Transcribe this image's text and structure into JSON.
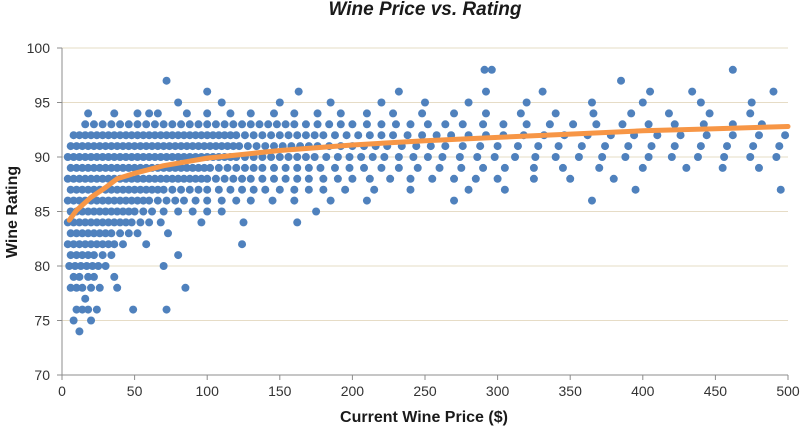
{
  "chart_data": {
    "type": "scatter",
    "title": "Wine Price vs. Rating",
    "xlabel": "Current Wine Price ($)",
    "ylabel": "Wine Rating",
    "xlim": [
      0,
      500
    ],
    "ylim": [
      70,
      100
    ],
    "x_ticks": [
      0,
      50,
      100,
      150,
      200,
      250,
      300,
      350,
      400,
      450,
      500
    ],
    "y_ticks": [
      70,
      75,
      80,
      85,
      90,
      95,
      100
    ],
    "grid": "horizontal",
    "legend": "none",
    "colors": {
      "points": "#4f81bd",
      "trendline": "#f79646",
      "grid": "#e6dcc6",
      "axis": "#8c8c8c"
    },
    "series": [
      {
        "kind": "points",
        "bands": [
          {
            "y": 74,
            "x": [
              12
            ]
          },
          {
            "y": 75,
            "x": [
              8,
              20
            ]
          },
          {
            "y": 76,
            "x": [
              10,
              14,
              18,
              24,
              49,
              72
            ]
          },
          {
            "y": 77,
            "x": [
              16
            ]
          },
          {
            "y": 78,
            "x": [
              6,
              10,
              14,
              20,
              26,
              38,
              85
            ]
          },
          {
            "y": 79,
            "x": [
              8,
              12,
              18,
              22,
              36
            ]
          },
          {
            "y": 80,
            "x": [
              5,
              9,
              13,
              17,
              21,
              25,
              30,
              70
            ]
          },
          {
            "y": 81,
            "x": [
              6,
              10,
              14,
              18,
              22,
              28,
              34,
              80
            ]
          },
          {
            "y": 82,
            "x": [
              4,
              8,
              12,
              16,
              20,
              24,
              28,
              32,
              36,
              42,
              58,
              124
            ]
          },
          {
            "y": 83,
            "x": [
              6,
              10,
              14,
              18,
              22,
              26,
              30,
              34,
              40,
              46,
              52,
              73
            ]
          },
          {
            "y": 84,
            "x": [
              4,
              8,
              12,
              16,
              20,
              24,
              28,
              32,
              36,
              40,
              44,
              48,
              54,
              60,
              68,
              96,
              125,
              162
            ]
          },
          {
            "y": 85,
            "x": [
              6,
              10,
              14,
              18,
              22,
              26,
              30,
              34,
              38,
              42,
              46,
              50,
              56,
              62,
              70,
              80,
              90,
              100,
              110,
              175
            ]
          },
          {
            "y": 86,
            "x": [
              4,
              8,
              12,
              16,
              20,
              24,
              28,
              32,
              36,
              40,
              44,
              48,
              52,
              56,
              60,
              66,
              72,
              78,
              84,
              92,
              100,
              110,
              120,
              130,
              145,
              160,
              185,
              210,
              270,
              365
            ]
          },
          {
            "y": 87,
            "x": [
              6,
              10,
              14,
              18,
              22,
              26,
              30,
              34,
              38,
              42,
              46,
              50,
              54,
              58,
              62,
              66,
              70,
              76,
              82,
              88,
              94,
              100,
              108,
              116,
              124,
              132,
              140,
              150,
              160,
              170,
              180,
              195,
              215,
              240,
              280,
              305,
              395,
              495
            ]
          },
          {
            "y": 88,
            "x": [
              4,
              8,
              12,
              16,
              20,
              24,
              28,
              32,
              36,
              40,
              44,
              48,
              52,
              56,
              60,
              64,
              68,
              72,
              76,
              80,
              84,
              88,
              92,
              96,
              100,
              106,
              112,
              118,
              124,
              130,
              138,
              146,
              154,
              162,
              170,
              180,
              190,
              200,
              212,
              226,
              240,
              255,
              270,
              285,
              300,
              325,
              350,
              380
            ]
          },
          {
            "y": 89,
            "x": [
              6,
              10,
              14,
              18,
              22,
              26,
              30,
              34,
              38,
              42,
              46,
              50,
              54,
              58,
              62,
              66,
              70,
              74,
              78,
              82,
              86,
              90,
              94,
              98,
              102,
              108,
              114,
              120,
              126,
              132,
              138,
              146,
              154,
              162,
              170,
              178,
              188,
              198,
              208,
              220,
              232,
              245,
              260,
              275,
              290,
              305,
              325,
              345,
              370,
              400,
              430,
              455,
              480
            ]
          },
          {
            "y": 90,
            "x": [
              4,
              8,
              12,
              16,
              20,
              24,
              28,
              32,
              36,
              40,
              44,
              48,
              52,
              56,
              60,
              64,
              68,
              72,
              76,
              80,
              84,
              88,
              92,
              96,
              100,
              104,
              108,
              112,
              116,
              120,
              126,
              132,
              138,
              144,
              150,
              156,
              162,
              168,
              174,
              182,
              190,
              198,
              206,
              214,
              222,
              232,
              242,
              252,
              262,
              274,
              286,
              298,
              312,
              326,
              340,
              356,
              372,
              388,
              404,
              420,
              438,
              456,
              474,
              492
            ]
          },
          {
            "y": 91,
            "x": [
              6,
              10,
              14,
              18,
              22,
              26,
              30,
              34,
              38,
              42,
              46,
              50,
              54,
              58,
              62,
              66,
              70,
              74,
              78,
              82,
              86,
              90,
              94,
              98,
              102,
              106,
              110,
              114,
              118,
              122,
              128,
              134,
              140,
              146,
              152,
              158,
              164,
              170,
              176,
              184,
              192,
              200,
              208,
              216,
              224,
              234,
              244,
              254,
              264,
              276,
              288,
              300,
              314,
              328,
              342,
              358,
              374,
              390,
              406,
              422,
              440,
              458,
              476,
              494
            ]
          },
          {
            "y": 92,
            "x": [
              8,
              12,
              16,
              20,
              24,
              28,
              32,
              36,
              40,
              44,
              48,
              52,
              56,
              60,
              64,
              68,
              72,
              76,
              80,
              84,
              88,
              92,
              96,
              100,
              104,
              108,
              112,
              116,
              120,
              126,
              132,
              138,
              144,
              150,
              156,
              162,
              168,
              174,
              180,
              188,
              196,
              204,
              212,
              220,
              228,
              238,
              248,
              258,
              268,
              280,
              292,
              304,
              318,
              332,
              346,
              362,
              378,
              394,
              410,
              426,
              444,
              462,
              480,
              498
            ]
          },
          {
            "y": 93,
            "x": [
              16,
              22,
              28,
              34,
              40,
              46,
              52,
              58,
              64,
              70,
              76,
              82,
              88,
              94,
              100,
              106,
              112,
              118,
              124,
              130,
              136,
              142,
              148,
              154,
              160,
              168,
              176,
              184,
              192,
              200,
              210,
              220,
              230,
              240,
              252,
              264,
              276,
              290,
              304,
              320,
              336,
              352,
              368,
              386,
              404,
              422,
              442,
              462,
              482
            ]
          },
          {
            "y": 94,
            "x": [
              18,
              36,
              52,
              60,
              66,
              86,
              100,
              116,
              130,
              146,
              160,
              176,
              192,
              210,
              228,
              248,
              270,
              292,
              316,
              340,
              366,
              392,
              418,
              446,
              474
            ]
          },
          {
            "y": 95,
            "x": [
              80,
              110,
              150,
              185,
              220,
              250,
              280,
              320,
              365,
              400,
              440,
              475
            ]
          },
          {
            "y": 96,
            "x": [
              100,
              163,
              232,
              292,
              331,
              405,
              434,
              490
            ]
          },
          {
            "y": 97,
            "x": [
              72,
              385
            ]
          },
          {
            "y": 98,
            "x": [
              291,
              296,
              462
            ]
          }
        ]
      },
      {
        "kind": "trendline",
        "points": [
          [
            5,
            84.2
          ],
          [
            10,
            85.1
          ],
          [
            20,
            86.3
          ],
          [
            30,
            87.2
          ],
          [
            38,
            88.0
          ],
          [
            50,
            88.5
          ],
          [
            70,
            89.2
          ],
          [
            100,
            89.9
          ],
          [
            150,
            90.6
          ],
          [
            200,
            91.1
          ],
          [
            250,
            91.5
          ],
          [
            300,
            91.8
          ],
          [
            350,
            92.1
          ],
          [
            400,
            92.4
          ],
          [
            450,
            92.6
          ],
          [
            500,
            92.8
          ]
        ]
      }
    ]
  }
}
